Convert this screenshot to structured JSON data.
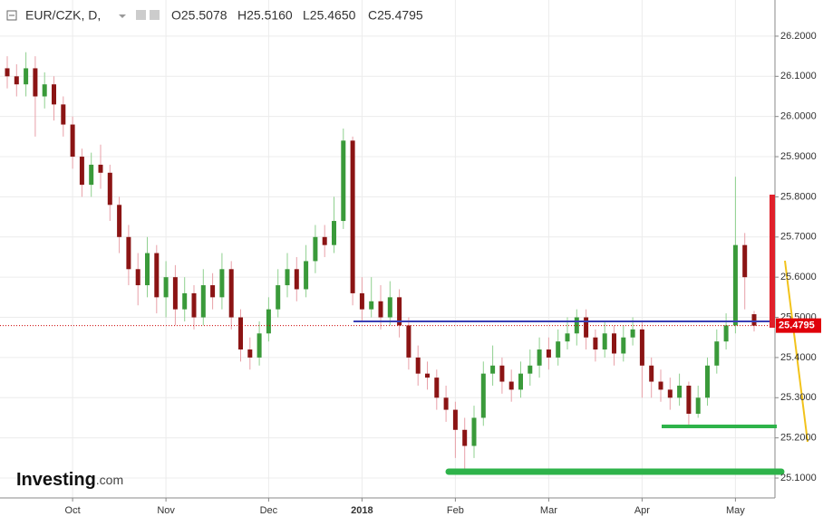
{
  "chart_data": {
    "type": "candlestick",
    "title": "EUR/CZK, D,",
    "legend_values": [
      "O25.5078",
      "H25.5160",
      "L25.4650",
      "C25.4795"
    ],
    "watermark": [
      "Investing",
      ".com"
    ],
    "up_color": "#3a9a3a",
    "down_color": "#8b1414",
    "up_wick": "#8fd08f",
    "down_wick": "#e8a0a8",
    "ylim": [
      25.055,
      26.29
    ],
    "yticks": [
      {
        "value": 25.1,
        "label": "25.1000"
      },
      {
        "value": 25.2,
        "label": "25.2000"
      },
      {
        "value": 25.3,
        "label": "25.3000"
      },
      {
        "value": 25.4,
        "label": "25.4000"
      },
      {
        "value": 25.5,
        "label": "25.5000"
      },
      {
        "value": 25.6,
        "label": "25.6000"
      },
      {
        "value": 25.7,
        "label": "25.7000"
      },
      {
        "value": 25.8,
        "label": "25.8000"
      },
      {
        "value": 25.9,
        "label": "25.9000"
      },
      {
        "value": 26.0,
        "label": "26.0000"
      },
      {
        "value": 26.1,
        "label": "26.1000"
      },
      {
        "value": 26.2,
        "label": "26.2000"
      }
    ],
    "xlim": [
      0,
      80
    ],
    "xticks": [
      {
        "value": 7,
        "label": "Oct"
      },
      {
        "value": 17,
        "label": "Nov"
      },
      {
        "value": 28,
        "label": "Dec"
      },
      {
        "value": 38,
        "label": "2018"
      },
      {
        "value": 48,
        "label": "Feb"
      },
      {
        "value": 58,
        "label": "Mar"
      },
      {
        "value": 68,
        "label": "Apr"
      },
      {
        "value": 78,
        "label": "May"
      }
    ],
    "grid": true,
    "open": [
      26.12,
      26.1,
      26.08,
      26.12,
      26.05,
      26.08,
      26.03,
      25.98,
      25.9,
      25.83,
      25.88,
      25.86,
      25.78,
      25.7,
      25.62,
      25.58,
      25.66,
      25.55,
      25.6,
      25.52,
      25.56,
      25.5,
      25.58,
      25.55,
      25.62,
      25.5,
      25.42,
      25.4,
      25.46,
      25.52,
      25.58,
      25.62,
      25.57,
      25.64,
      25.7,
      25.68,
      25.74,
      25.94,
      25.56,
      25.52,
      25.54,
      25.5,
      25.55,
      25.48,
      25.4,
      25.36,
      25.35,
      25.3,
      25.27,
      25.22,
      25.18,
      25.25,
      25.36,
      25.38,
      25.34,
      25.32,
      25.36,
      25.38,
      25.42,
      25.4,
      25.44,
      25.46,
      25.5,
      25.45,
      25.42,
      25.46,
      25.41,
      25.45,
      25.47,
      25.38,
      25.34,
      25.32,
      25.3,
      25.33,
      25.26,
      25.3,
      25.38,
      25.44,
      25.48,
      25.68,
      25.5078
    ],
    "high": [
      26.15,
      26.13,
      26.16,
      26.15,
      26.11,
      26.1,
      26.05,
      26.0,
      25.92,
      25.91,
      25.93,
      25.88,
      25.8,
      25.73,
      25.66,
      25.7,
      25.68,
      25.64,
      25.63,
      25.6,
      25.58,
      25.62,
      25.61,
      25.66,
      25.64,
      25.52,
      25.45,
      25.49,
      25.55,
      25.62,
      25.66,
      25.65,
      25.68,
      25.73,
      25.73,
      25.8,
      25.97,
      25.95,
      25.6,
      25.6,
      25.58,
      25.59,
      25.57,
      25.5,
      25.43,
      25.39,
      25.37,
      25.33,
      25.29,
      25.25,
      25.28,
      25.39,
      25.43,
      25.4,
      25.37,
      25.39,
      25.42,
      25.45,
      25.45,
      25.47,
      25.5,
      25.52,
      25.52,
      25.47,
      25.49,
      25.48,
      25.48,
      25.5,
      25.49,
      25.4,
      25.37,
      25.35,
      25.36,
      25.34,
      25.33,
      25.4,
      25.47,
      25.51,
      25.85,
      25.71,
      25.516
    ],
    "low": [
      26.07,
      26.05,
      26.05,
      25.95,
      26.02,
      25.99,
      25.95,
      25.87,
      25.8,
      25.8,
      25.82,
      25.74,
      25.66,
      25.58,
      25.53,
      25.55,
      25.51,
      25.5,
      25.48,
      25.49,
      25.47,
      25.48,
      25.52,
      25.52,
      25.47,
      25.39,
      25.37,
      25.38,
      25.44,
      25.5,
      25.55,
      25.54,
      25.55,
      25.61,
      25.65,
      25.66,
      25.72,
      25.53,
      25.49,
      25.5,
      25.47,
      25.48,
      25.45,
      25.37,
      25.33,
      25.32,
      25.27,
      25.24,
      25.15,
      25.12,
      25.15,
      25.23,
      25.33,
      25.31,
      25.29,
      25.3,
      25.33,
      25.35,
      25.37,
      25.38,
      25.42,
      25.43,
      25.42,
      25.39,
      25.4,
      25.38,
      25.39,
      25.43,
      25.3,
      25.3,
      25.29,
      25.27,
      25.28,
      25.23,
      25.25,
      25.28,
      25.36,
      25.42,
      25.46,
      25.52,
      25.465
    ],
    "close": [
      26.1,
      26.08,
      26.12,
      26.05,
      26.08,
      26.03,
      25.98,
      25.9,
      25.83,
      25.88,
      25.86,
      25.78,
      25.7,
      25.62,
      25.58,
      25.66,
      25.55,
      25.6,
      25.52,
      25.56,
      25.5,
      25.58,
      25.55,
      25.62,
      25.5,
      25.42,
      25.4,
      25.46,
      25.52,
      25.58,
      25.62,
      25.57,
      25.64,
      25.7,
      25.68,
      25.74,
      25.94,
      25.56,
      25.52,
      25.54,
      25.5,
      25.55,
      25.48,
      25.4,
      25.36,
      25.35,
      25.3,
      25.27,
      25.22,
      25.18,
      25.25,
      25.36,
      25.38,
      25.34,
      25.32,
      25.36,
      25.38,
      25.42,
      25.4,
      25.44,
      25.46,
      25.5,
      25.45,
      25.42,
      25.46,
      25.41,
      25.45,
      25.47,
      25.38,
      25.34,
      25.32,
      25.3,
      25.33,
      25.26,
      25.3,
      25.38,
      25.44,
      25.48,
      25.68,
      25.6,
      25.4795
    ]
  }
}
